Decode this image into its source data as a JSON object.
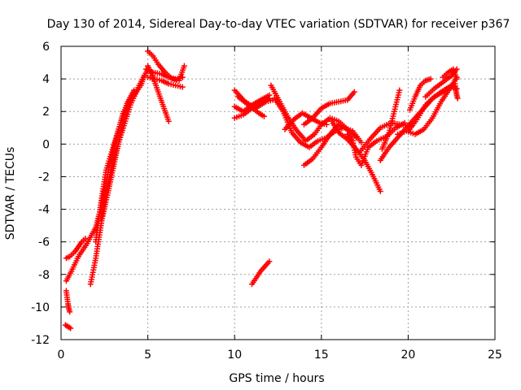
{
  "chart_data": {
    "type": "scatter",
    "title": "Day 130 of 2014, Sidereal Day-to-day VTEC variation (SDTVAR) for receiver p367",
    "xlabel": "GPS time / hours",
    "ylabel": "SDTVAR / TECUs",
    "xlim": [
      0,
      25
    ],
    "ylim": [
      -12,
      6
    ],
    "xticks": [
      0,
      5,
      10,
      15,
      20,
      25
    ],
    "yticks": [
      -12,
      -10,
      -8,
      -6,
      -4,
      -2,
      0,
      2,
      4,
      6
    ],
    "grid": true,
    "legend": "none",
    "marker": "+",
    "color": "#ff0000",
    "series": [
      {
        "x": [
          0.3,
          0.5,
          0.8,
          1.0,
          1.2,
          1.4
        ],
        "y": [
          -7.0,
          -6.9,
          -6.6,
          -6.3,
          -6.0,
          -5.8
        ]
      },
      {
        "x": [
          0.3,
          0.35,
          0.4,
          0.45,
          0.5
        ],
        "y": [
          -9.0,
          -9.4,
          -9.8,
          -10.1,
          -10.3
        ]
      },
      {
        "x": [
          0.25,
          0.4,
          0.55
        ],
        "y": [
          -11.1,
          -11.2,
          -11.3
        ]
      },
      {
        "x": [
          0.3,
          0.6,
          1.0,
          1.5,
          2.0,
          2.3,
          2.5
        ],
        "y": [
          -8.4,
          -7.8,
          -6.9,
          -6.1,
          -5.1,
          -3.9,
          -2.8
        ]
      },
      {
        "x": [
          1.7,
          2.0,
          2.3,
          2.6,
          3.0,
          3.5,
          4.0,
          4.5,
          5.0
        ],
        "y": [
          -8.6,
          -7.0,
          -5.0,
          -3.0,
          -1.0,
          0.7,
          2.4,
          3.6,
          4.6
        ]
      },
      {
        "x": [
          2.3,
          2.6,
          2.8,
          3.0,
          3.2,
          3.4,
          3.6
        ],
        "y": [
          -4.6,
          -2.4,
          -1.2,
          -0.4,
          0.4,
          1.2,
          2.0
        ]
      },
      {
        "x": [
          2.4,
          2.7,
          3.0,
          3.3,
          3.6,
          3.9,
          4.2,
          4.6,
          4.8
        ],
        "y": [
          -4.4,
          -3.0,
          -1.5,
          0.0,
          1.5,
          2.6,
          3.0,
          3.6,
          4.2
        ]
      },
      {
        "x": [
          2.0,
          2.3,
          2.6,
          3.0,
          3.4,
          3.8,
          4.2
        ],
        "y": [
          -6.0,
          -3.6,
          -1.6,
          -0.2,
          1.2,
          2.5,
          3.3
        ]
      },
      {
        "x": [
          5.0,
          5.3,
          5.6,
          6.0,
          6.4,
          6.8,
          7.1
        ],
        "y": [
          5.7,
          5.4,
          4.9,
          4.4,
          4.0,
          3.9,
          4.8
        ]
      },
      {
        "x": [
          4.9,
          5.3,
          5.8,
          6.2,
          6.6,
          7.0
        ],
        "y": [
          4.6,
          4.4,
          4.3,
          4.1,
          4.0,
          4.1
        ]
      },
      {
        "x": [
          5.0,
          5.4,
          5.8,
          6.2,
          6.6,
          7.0
        ],
        "y": [
          4.1,
          4.0,
          3.9,
          3.7,
          3.6,
          3.5
        ]
      },
      {
        "x": [
          5.0,
          5.3,
          5.6,
          5.9,
          6.2
        ],
        "y": [
          4.8,
          4.1,
          3.2,
          2.3,
          1.4
        ]
      },
      {
        "x": [
          10.0,
          10.6,
          11.2,
          11.8,
          12.2
        ],
        "y": [
          3.3,
          2.6,
          2.2,
          2.6,
          2.7
        ]
      },
      {
        "x": [
          10.0,
          10.5,
          11.0,
          11.5,
          12.0
        ],
        "y": [
          1.6,
          1.8,
          2.2,
          2.5,
          2.8
        ]
      },
      {
        "x": [
          10.0,
          10.5,
          11.0,
          11.5,
          12.0
        ],
        "y": [
          2.3,
          2.0,
          2.4,
          2.7,
          3.0
        ]
      },
      {
        "x": [
          10.2,
          10.8,
          11.4,
          11.7
        ],
        "y": [
          2.9,
          2.4,
          1.9,
          1.7
        ]
      },
      {
        "x": [
          11.0,
          11.5,
          12.0
        ],
        "y": [
          -8.6,
          -7.8,
          -7.2
        ]
      },
      {
        "x": [
          12.1,
          12.6,
          13.1,
          13.6,
          14.1,
          14.6,
          15.0,
          15.5,
          16.0,
          16.5,
          17.0
        ],
        "y": [
          3.6,
          2.6,
          1.6,
          0.8,
          0.2,
          0.6,
          1.2,
          1.6,
          1.4,
          0.9,
          0.4
        ]
      },
      {
        "x": [
          12.3,
          12.8,
          13.3,
          13.8,
          14.3,
          14.8,
          15.3,
          15.8,
          16.3,
          16.8,
          17.3
        ],
        "y": [
          2.8,
          2.0,
          0.7,
          0.1,
          -0.2,
          0.2,
          0.4,
          0.8,
          1.0,
          0.8,
          0.1
        ]
      },
      {
        "x": [
          12.9,
          13.4,
          13.9,
          14.4,
          14.9,
          15.3
        ],
        "y": [
          0.9,
          1.5,
          1.9,
          1.6,
          1.3,
          1.2
        ]
      },
      {
        "x": [
          14.0,
          14.5,
          15.0,
          15.5,
          16.0,
          16.5,
          17.0
        ],
        "y": [
          -1.3,
          -0.9,
          -0.2,
          0.6,
          1.2,
          0.9,
          0.4
        ]
      },
      {
        "x": [
          14.0,
          14.5,
          15.0,
          15.5,
          16.0,
          16.5,
          16.9
        ],
        "y": [
          1.2,
          1.6,
          2.2,
          2.5,
          2.6,
          2.7,
          3.2
        ]
      },
      {
        "x": [
          15.6,
          16.0,
          16.5,
          17.0,
          17.5,
          18.0,
          18.4
        ],
        "y": [
          1.4,
          0.7,
          0.3,
          -0.3,
          -1.0,
          -2.0,
          -2.9
        ]
      },
      {
        "x": [
          16.5,
          16.8,
          17.0,
          17.3,
          17.7,
          18.2,
          18.8,
          19.3,
          19.8
        ],
        "y": [
          0.6,
          0.2,
          -0.8,
          -1.3,
          -0.2,
          0.2,
          0.5,
          1.0,
          1.3
        ]
      },
      {
        "x": [
          17.2,
          17.8,
          18.4,
          19.0,
          19.6,
          20.2
        ],
        "y": [
          -0.5,
          0.3,
          1.0,
          1.3,
          1.2,
          1.1
        ]
      },
      {
        "x": [
          18.5,
          18.9,
          19.2,
          19.5
        ],
        "y": [
          -0.3,
          0.7,
          2.0,
          3.3
        ]
      },
      {
        "x": [
          18.4,
          18.9,
          19.4,
          19.9,
          20.4,
          20.9,
          21.4,
          21.9,
          22.5
        ],
        "y": [
          -1.0,
          -0.2,
          0.4,
          1.0,
          1.6,
          2.2,
          2.8,
          3.2,
          3.6
        ]
      },
      {
        "x": [
          19.4,
          19.9,
          20.4,
          20.9,
          21.4,
          21.9,
          22.4,
          22.8
        ],
        "y": [
          0.6,
          0.8,
          0.6,
          0.9,
          1.6,
          2.6,
          3.4,
          4.1
        ]
      },
      {
        "x": [
          20.0,
          20.5,
          21.0,
          21.5,
          22.0,
          22.5,
          22.8
        ],
        "y": [
          0.8,
          1.5,
          2.4,
          2.9,
          3.2,
          3.5,
          3.4
        ]
      },
      {
        "x": [
          20.1,
          20.4,
          20.7,
          21.0,
          21.3
        ],
        "y": [
          2.1,
          2.9,
          3.6,
          3.9,
          4.0
        ]
      },
      {
        "x": [
          21.0,
          21.5,
          22.0,
          22.5,
          22.8
        ],
        "y": [
          2.9,
          3.4,
          3.8,
          4.2,
          4.6
        ]
      },
      {
        "x": [
          22.0,
          22.3,
          22.6,
          22.8
        ],
        "y": [
          4.1,
          4.4,
          4.6,
          4.0
        ]
      },
      {
        "x": [
          22.7,
          22.75,
          22.8,
          22.85
        ],
        "y": [
          3.7,
          3.3,
          3.0,
          2.8
        ]
      }
    ]
  }
}
